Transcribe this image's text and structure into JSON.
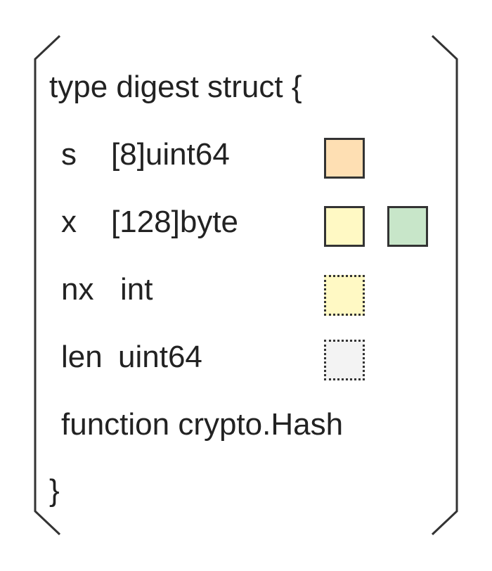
{
  "struct": {
    "header": "type digest struct {",
    "fields": [
      {
        "name": "s",
        "type": "[8]uint64"
      },
      {
        "name": "x",
        "type": "[128]byte"
      },
      {
        "name": "nx",
        "type": "int"
      },
      {
        "name": "len",
        "type": "uint64"
      }
    ],
    "method": "function crypto.Hash",
    "closing": "}"
  },
  "colors": {
    "s_box": "#fedfb3",
    "x_box_1": "#fff9c4",
    "x_box_2": "#c8e6c9",
    "nx_box": "#fff9c4",
    "len_box": "#f3f3f3",
    "stroke": "#333333"
  },
  "markers": {
    "solid": "solid-border",
    "dotted": "dotted-border"
  }
}
